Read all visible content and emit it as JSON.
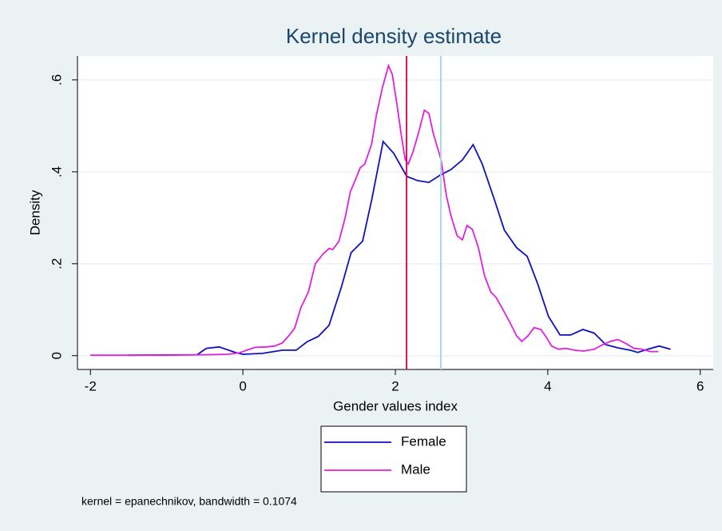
{
  "chart_data": {
    "type": "line",
    "title": "Kernel density estimate",
    "x_label": "Gender values index",
    "y_label": "Density",
    "note": "kernel = epanechnikov, bandwidth = 0.1074",
    "xlim": [
      -2.17,
      6.17
    ],
    "ylim": [
      -0.03,
      0.652
    ],
    "xticks": [
      -2,
      0,
      2,
      4,
      6
    ],
    "yticks": [
      {
        "value": 0,
        "label": "0"
      },
      {
        "value": 0.2,
        "label": ".2"
      },
      {
        "value": 0.4,
        "label": ".4"
      },
      {
        "value": 0.6,
        "label": ".6"
      }
    ],
    "grid": true,
    "legend_position": "bottom",
    "xlines": [
      {
        "value": 2.147,
        "color": "#d4145a"
      },
      {
        "value": 2.597,
        "color": "#a6d8e8"
      }
    ],
    "series": [
      {
        "name": "Female",
        "color": "#1010c0",
        "x": [
          -1.5,
          -0.6,
          -0.48,
          -0.31,
          -0.1,
          0,
          0.26,
          0.52,
          0.7,
          0.84,
          0.99,
          1.13,
          1.29,
          1.42,
          1.57,
          1.69,
          1.84,
          1.98,
          2.15,
          2.29,
          2.44,
          2.59,
          2.73,
          2.88,
          3.02,
          3.14,
          3.3,
          3.43,
          3.59,
          3.73,
          3.87,
          4.01,
          4.16,
          4.3,
          4.46,
          4.61,
          4.76,
          4.92,
          5.08,
          5.18,
          5.31,
          5.46,
          5.61
        ],
        "values": [
          0.001,
          0.002,
          0.016,
          0.019,
          0.007,
          0.003,
          0.005,
          0.012,
          0.012,
          0.03,
          0.042,
          0.066,
          0.148,
          0.224,
          0.249,
          0.339,
          0.466,
          0.44,
          0.39,
          0.381,
          0.377,
          0.393,
          0.405,
          0.426,
          0.459,
          0.417,
          0.339,
          0.273,
          0.235,
          0.216,
          0.155,
          0.085,
          0.045,
          0.045,
          0.057,
          0.049,
          0.024,
          0.017,
          0.012,
          0.007,
          0.014,
          0.021,
          0.014
        ]
      },
      {
        "name": "Male",
        "color": "#e020e0",
        "x": [
          -2,
          -1,
          -0.5,
          -0.2,
          -0.05,
          0.05,
          0.16,
          0.31,
          0.42,
          0.52,
          0.6,
          0.68,
          0.76,
          0.86,
          0.95,
          1.05,
          1.13,
          1.18,
          1.26,
          1.34,
          1.41,
          1.49,
          1.54,
          1.6,
          1.69,
          1.75,
          1.83,
          1.91,
          1.96,
          2.02,
          2.08,
          2.13,
          2.17,
          2.23,
          2.3,
          2.38,
          2.44,
          2.5,
          2.6,
          2.67,
          2.73,
          2.81,
          2.88,
          2.94,
          3.01,
          3.09,
          3.17,
          3.25,
          3.32,
          3.4,
          3.51,
          3.59,
          3.66,
          3.74,
          3.82,
          3.91,
          3.98,
          4.05,
          4.14,
          4.24,
          4.35,
          4.47,
          4.61,
          4.71,
          4.82,
          4.92,
          5.03,
          5.13,
          5.24,
          5.34,
          5.45
        ],
        "values": [
          0.001,
          0.001,
          0.002,
          0.003,
          0.006,
          0.012,
          0.018,
          0.019,
          0.021,
          0.028,
          0.043,
          0.06,
          0.104,
          0.139,
          0.2,
          0.221,
          0.233,
          0.231,
          0.249,
          0.299,
          0.357,
          0.388,
          0.409,
          0.417,
          0.461,
          0.522,
          0.583,
          0.631,
          0.612,
          0.548,
          0.478,
          0.426,
          0.417,
          0.443,
          0.482,
          0.534,
          0.527,
          0.482,
          0.426,
          0.348,
          0.304,
          0.261,
          0.252,
          0.283,
          0.275,
          0.235,
          0.174,
          0.139,
          0.127,
          0.104,
          0.07,
          0.043,
          0.031,
          0.043,
          0.061,
          0.057,
          0.04,
          0.021,
          0.014,
          0.016,
          0.012,
          0.01,
          0.014,
          0.023,
          0.031,
          0.035,
          0.026,
          0.016,
          0.014,
          0.009,
          0.009
        ]
      }
    ]
  }
}
